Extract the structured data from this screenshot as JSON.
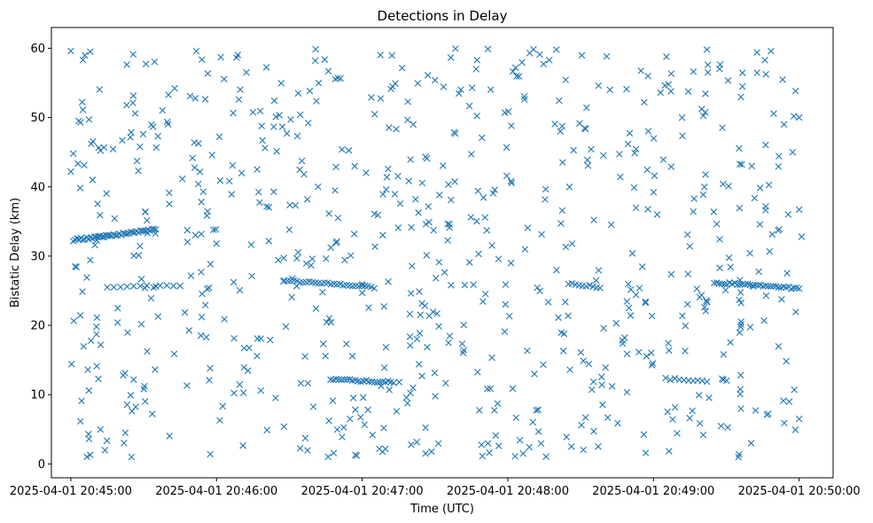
{
  "chart_data": {
    "type": "scatter",
    "title": "Detections in Delay",
    "xlabel": "Time (UTC)",
    "ylabel": "Bistatic Delay (km)",
    "x_axis": {
      "kind": "time",
      "range": [
        "2025-04-01 20:44:52",
        "2025-04-01 20:50:14"
      ],
      "ticks": [
        "2025-04-01 20:45:00",
        "2025-04-01 20:46:00",
        "2025-04-01 20:47:00",
        "2025-04-01 20:48:00",
        "2025-04-01 20:49:00",
        "2025-04-01 20:50:00"
      ]
    },
    "y_axis": {
      "range": [
        -2,
        63
      ],
      "ticks": [
        0,
        10,
        20,
        30,
        40,
        50,
        60
      ]
    },
    "grid": false,
    "marker": "x",
    "color": "#1f77b4",
    "tracks": [
      {
        "start": [
          "2025-04-01 20:45:01",
          32.3
        ],
        "end": [
          "2025-04-01 20:45:35",
          33.8
        ],
        "points": 44
      },
      {
        "start": [
          "2025-04-01 20:45:15",
          25.5
        ],
        "end": [
          "2025-04-01 20:45:45",
          25.7
        ],
        "points": 12
      },
      {
        "start": [
          "2025-04-01 20:46:28",
          26.5
        ],
        "end": [
          "2025-04-01 20:47:05",
          25.5
        ],
        "points": 30
      },
      {
        "start": [
          "2025-04-01 20:46:47",
          12.2
        ],
        "end": [
          "2025-04-01 20:47:13",
          11.8
        ],
        "points": 24
      },
      {
        "start": [
          "2025-04-01 20:48:25",
          26.0
        ],
        "end": [
          "2025-04-01 20:48:38",
          25.5
        ],
        "points": 10
      },
      {
        "start": [
          "2025-04-01 20:49:25",
          26.2
        ],
        "end": [
          "2025-04-01 20:50:00",
          25.3
        ],
        "points": 34
      },
      {
        "start": [
          "2025-04-01 20:49:05",
          12.3
        ],
        "end": [
          "2025-04-01 20:49:22",
          12.0
        ],
        "points": 10
      }
    ],
    "points_sample": [
      [
        "2025-04-01 20:45:00",
        59.6
      ],
      [
        "2025-04-01 20:45:05",
        58.3
      ],
      [
        "2025-04-01 20:45:08",
        59.5
      ],
      [
        "2025-04-01 20:45:00",
        42.2
      ],
      [
        "2025-04-01 20:45:01",
        44.8
      ],
      [
        "2025-04-01 20:45:04",
        49.3
      ],
      [
        "2025-04-01 20:45:07",
        13.6
      ],
      [
        "2025-04-01 20:45:08",
        1.3
      ],
      [
        "2025-04-01 20:45:25",
        1.0
      ],
      [
        "2025-04-01 20:46:00",
        31.8
      ],
      [
        "2025-04-01 20:46:20",
        45.6
      ],
      [
        "2025-04-01 20:47:00",
        24.7
      ],
      [
        "2025-04-01 20:47:22",
        38.2
      ],
      [
        "2025-04-01 20:48:20",
        59.8
      ],
      [
        "2025-04-01 20:49:22",
        59.8
      ],
      [
        "2025-04-01 20:50:00",
        50.0
      ],
      [
        "2025-04-01 20:50:00",
        36.7
      ],
      [
        "2025-04-01 20:50:01",
        32.8
      ],
      [
        "2025-04-01 20:50:00",
        6.5
      ],
      [
        "2025-04-01 20:49:58",
        10.7
      ],
      [
        "2025-04-01 20:48:03",
        1.1
      ],
      [
        "2025-04-01 20:49:35",
        1.0
      ],
      [
        "2025-04-01 20:46:55",
        6.5
      ],
      [
        "2025-04-01 20:47:55",
        4.1
      ]
    ],
    "random_points": 720,
    "random_seed": 20250401
  }
}
